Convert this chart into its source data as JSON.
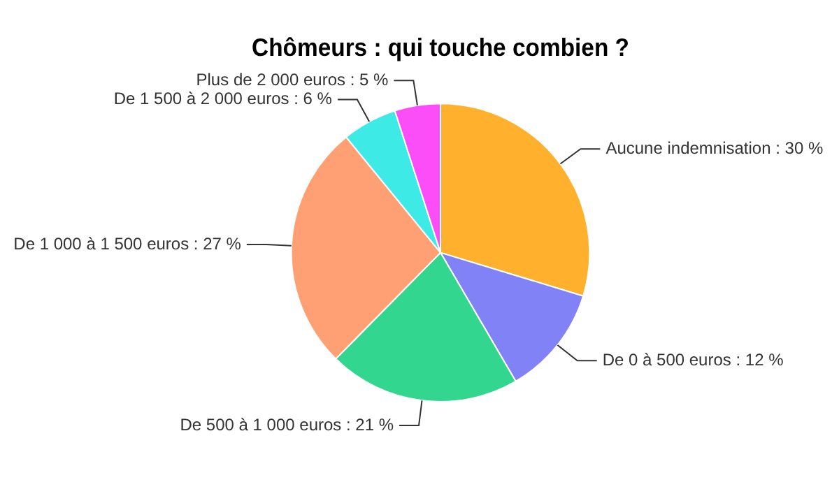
{
  "chart_data": {
    "type": "pie",
    "title": "Chômeurs : qui touche combien ?",
    "categories": [
      "Aucune indemnisation",
      "De 0 à 500 euros",
      "De 500 à 1 000 euros",
      "De 1 000 à 1 500 euros",
      "De 1 500 à 2 000 euros",
      "Plus de 2 000 euros"
    ],
    "values": [
      30,
      12,
      21,
      27,
      6,
      5
    ],
    "colors": [
      "#ffb12e",
      "#8282f7",
      "#33d68f",
      "#ffa074",
      "#3eeae6",
      "#fc4ef8"
    ],
    "value_labels": [
      "30 %",
      "12 %",
      "21 %",
      "27 %",
      "6 %",
      "5 %"
    ],
    "legend": false
  }
}
